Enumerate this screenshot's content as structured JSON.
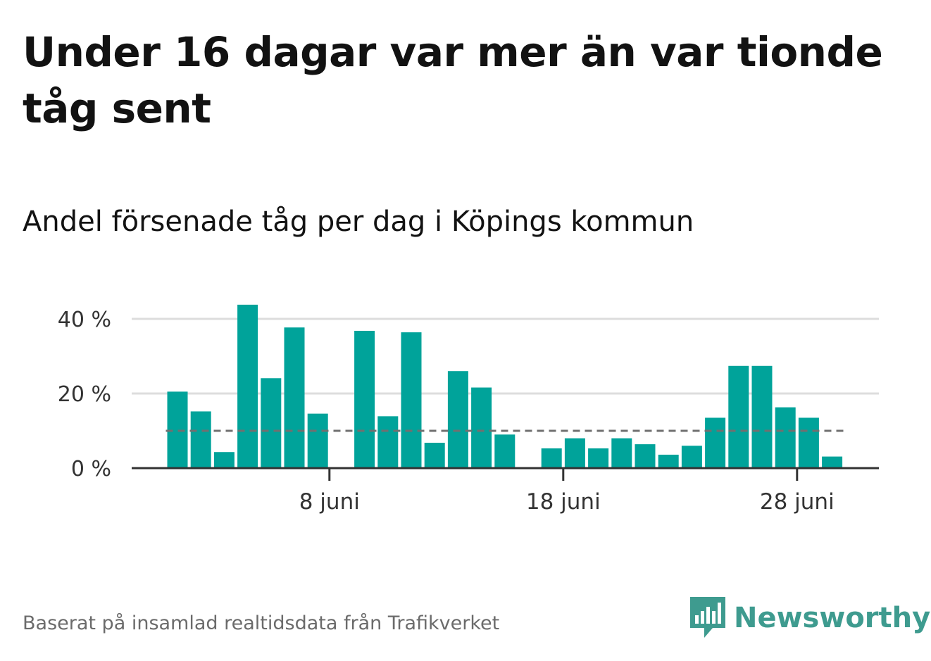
{
  "title": "Under 16 dagar var mer än var tionde tåg sent",
  "subtitle": "Andel försenade tåg per dag i Köpings kommun",
  "source": "Baserat på insamlad realtidsdata från Trafikverket",
  "brand": {
    "name": "Newsworthy",
    "icon": "newsworthy-logo-icon",
    "color": "#3e9b8f"
  },
  "chart_data": {
    "type": "bar",
    "x_unit": "date (juni)",
    "x": [
      1,
      2,
      3,
      4,
      5,
      6,
      7,
      8,
      9,
      10,
      11,
      12,
      13,
      14,
      15,
      16,
      17,
      18,
      19,
      20,
      21,
      22,
      23,
      24,
      25,
      26,
      27,
      28,
      29
    ],
    "values": [
      20.5,
      15.2,
      4.3,
      43.8,
      24.1,
      37.7,
      14.6,
      null,
      36.8,
      13.9,
      36.4,
      6.8,
      26.0,
      21.6,
      9.0,
      null,
      5.3,
      8.0,
      5.3,
      8.0,
      6.4,
      3.6,
      6.0,
      13.5,
      27.4,
      27.4,
      16.3,
      13.5,
      3.1
    ],
    "reference_line": 10,
    "yticks": [
      0,
      20,
      40
    ],
    "ytick_labels": [
      "0 %",
      "20 %",
      "40 %"
    ],
    "xtick_values": [
      8,
      18,
      28
    ],
    "xtick_labels": [
      "8 juni",
      "18 juni",
      "28 juni"
    ],
    "ylim": [
      0,
      45
    ],
    "grid": true,
    "colors": {
      "bar": "#00a39a",
      "reference": "#707070",
      "grid": "#dddddd",
      "axis": "#333333"
    }
  }
}
